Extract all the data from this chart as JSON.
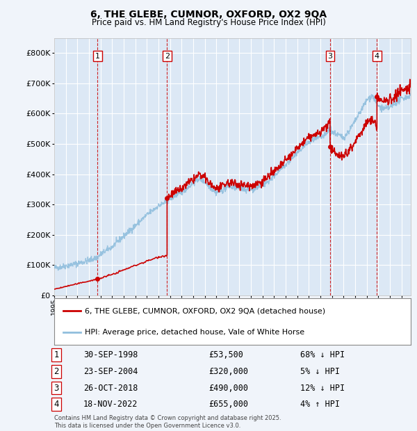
{
  "title": "6, THE GLEBE, CUMNOR, OXFORD, OX2 9QA",
  "subtitle": "Price paid vs. HM Land Registry's House Price Index (HPI)",
  "bg_color": "#f0f4fa",
  "plot_bg_color": "#dce8f5",
  "grid_color": "#c8d8e8",
  "hpi_color": "#90bedd",
  "price_color": "#cc0000",
  "vline_color": "#cc0000",
  "ylim": [
    0,
    850000
  ],
  "yticks": [
    0,
    100000,
    200000,
    300000,
    400000,
    500000,
    600000,
    700000,
    800000
  ],
  "xlim_start": 1995.0,
  "xlim_end": 2025.8,
  "transactions": [
    {
      "num": 1,
      "date": "30-SEP-1998",
      "price": 53500,
      "x": 1998.75,
      "pct": "68%",
      "dir": "↓"
    },
    {
      "num": 2,
      "date": "23-SEP-2004",
      "price": 320000,
      "x": 2004.75,
      "pct": "5%",
      "dir": "↓"
    },
    {
      "num": 3,
      "date": "26-OCT-2018",
      "price": 490000,
      "x": 2018.83,
      "pct": "12%",
      "dir": "↓"
    },
    {
      "num": 4,
      "date": "18-NOV-2022",
      "price": 655000,
      "x": 2022.88,
      "pct": "4%",
      "dir": "↑"
    }
  ],
  "legend_label_price": "6, THE GLEBE, CUMNOR, OXFORD, OX2 9QA (detached house)",
  "legend_label_hpi": "HPI: Average price, detached house, Vale of White Horse",
  "footer": "Contains HM Land Registry data © Crown copyright and database right 2025.\nThis data is licensed under the Open Government Licence v3.0."
}
